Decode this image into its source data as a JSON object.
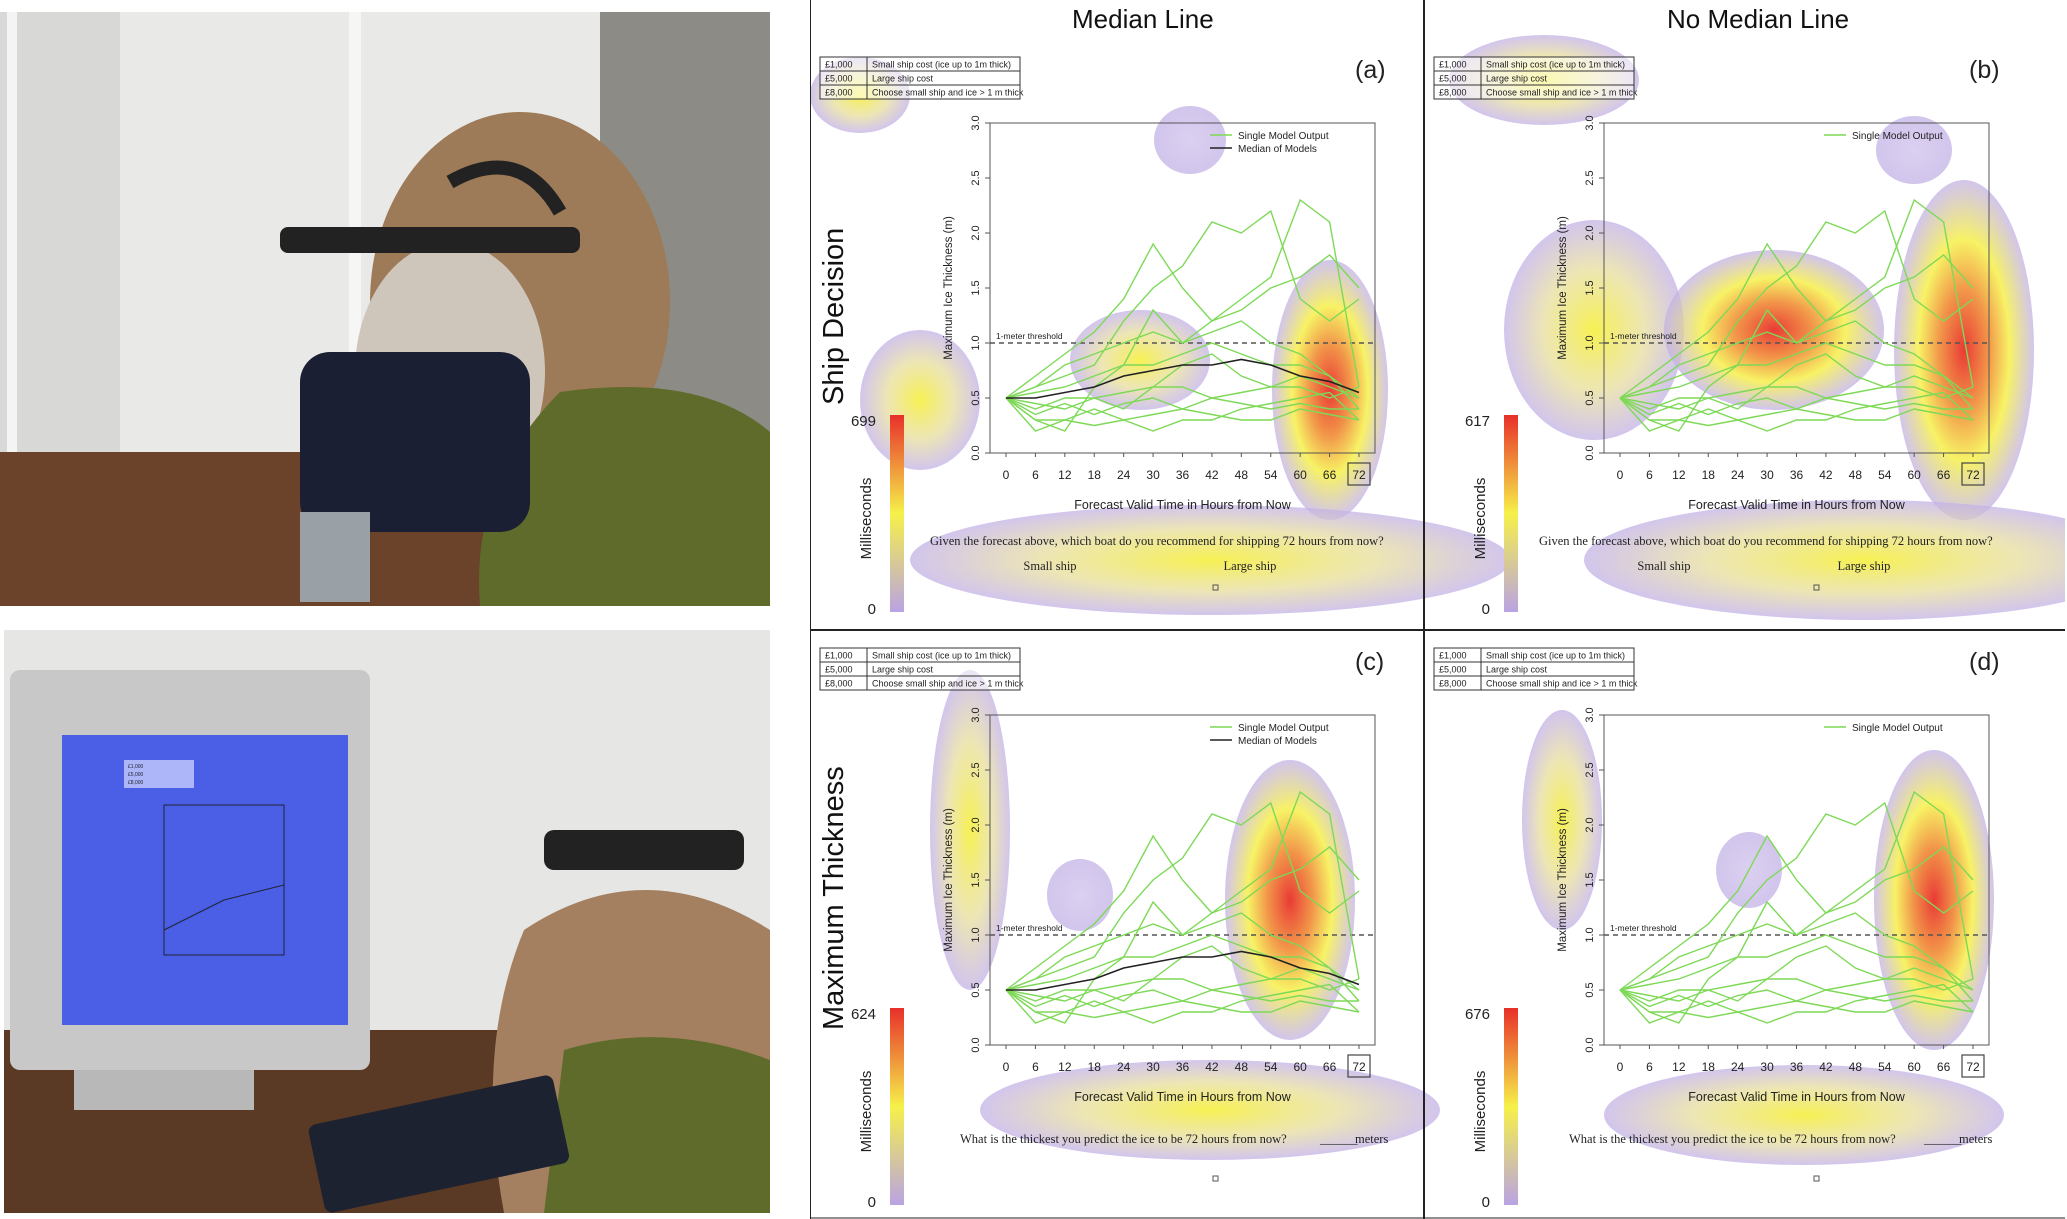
{
  "columns": [
    "Median Line",
    "No Median Line"
  ],
  "rows": [
    "Ship Decision",
    "Maximum Thickness"
  ],
  "panels": [
    {
      "label": "(a)",
      "row": 0,
      "col": 0,
      "scale_max": "699",
      "scale_min": "0",
      "median": true
    },
    {
      "label": "(b)",
      "row": 0,
      "col": 1,
      "scale_max": "617",
      "scale_min": "0",
      "median": false
    },
    {
      "label": "(c)",
      "row": 1,
      "col": 0,
      "scale_max": "624",
      "scale_min": "0",
      "median": true
    },
    {
      "label": "(d)",
      "row": 1,
      "col": 1,
      "scale_max": "676",
      "scale_min": "0",
      "median": false
    }
  ],
  "cost_table": [
    [
      "£1,000",
      "Small ship cost (ice up to 1m thick)"
    ],
    [
      "£5,000",
      "Large ship cost"
    ],
    [
      "£8,000",
      "Choose small ship and ice > 1 m thick"
    ]
  ],
  "scale_label": "Milliseconds",
  "threshold_label": "1-meter threshold",
  "legend": {
    "single": "Single Model Output",
    "median": "Median of Models"
  },
  "questions": {
    "ship": "Given the forecast above, which boat do you recommend for shipping 72 hours from now?",
    "small_ship": "Small ship",
    "large_ship": "Large ship",
    "thickness": "What is the thickest you predict the ice to be 72 hours from now?",
    "thickness_blank": "______",
    "thickness_unit": "meters"
  },
  "photo_screen_table": [
    "£1,000",
    "£5,000",
    "£8,000"
  ],
  "colors": {
    "single": "#7ed957",
    "median": "#222222",
    "heat_low": "#b9a3e3",
    "heat_mid": "#f6f04a",
    "heat_high": "#e8302a"
  },
  "chart_data": {
    "type": "line",
    "xlabel": "Forecast Valid Time in Hours from Now",
    "ylabel": "Maximum Ice Thickness (m)",
    "x": [
      0,
      6,
      12,
      18,
      24,
      30,
      36,
      42,
      48,
      54,
      60,
      66,
      72
    ],
    "yticks": [
      "0.0",
      "0.5",
      "1.0",
      "1.5",
      "2.0",
      "2.5",
      "3.0"
    ],
    "ylim": [
      0,
      3
    ],
    "threshold": 1.0,
    "series": [
      {
        "values": [
          0.5,
          0.7,
          0.9,
          1.1,
          1.4,
          1.9,
          1.5,
          1.2,
          1.4,
          1.6,
          2.3,
          2.1,
          0.6
        ]
      },
      {
        "values": [
          0.5,
          0.6,
          0.7,
          0.8,
          1.2,
          1.5,
          1.7,
          2.1,
          2.0,
          2.2,
          1.4,
          1.2,
          1.4
        ]
      },
      {
        "values": [
          0.5,
          0.3,
          0.2,
          0.6,
          0.8,
          1.3,
          1.0,
          1.2,
          1.3,
          1.5,
          1.6,
          1.8,
          1.5
        ]
      },
      {
        "values": [
          0.5,
          0.4,
          0.5,
          0.5,
          0.4,
          0.6,
          0.8,
          0.9,
          0.7,
          0.6,
          0.6,
          0.5,
          0.6
        ]
      },
      {
        "values": [
          0.5,
          0.6,
          0.8,
          0.9,
          1.0,
          1.1,
          1.0,
          1.1,
          1.2,
          1.0,
          0.9,
          0.7,
          0.4
        ]
      },
      {
        "values": [
          0.5,
          0.45,
          0.4,
          0.5,
          0.55,
          0.6,
          0.6,
          0.5,
          0.55,
          0.6,
          0.7,
          0.6,
          0.5
        ]
      },
      {
        "values": [
          0.5,
          0.3,
          0.3,
          0.4,
          0.3,
          0.35,
          0.4,
          0.35,
          0.3,
          0.3,
          0.4,
          0.35,
          0.3
        ]
      },
      {
        "values": [
          0.5,
          0.55,
          0.6,
          0.7,
          0.8,
          0.8,
          0.9,
          1.0,
          0.9,
          0.8,
          0.8,
          0.7,
          0.5
        ]
      },
      {
        "values": [
          0.5,
          0.2,
          0.3,
          0.25,
          0.3,
          0.2,
          0.3,
          0.3,
          0.4,
          0.45,
          0.5,
          0.55,
          0.3
        ]
      },
      {
        "values": [
          0.5,
          0.35,
          0.45,
          0.35,
          0.45,
          0.5,
          0.4,
          0.5,
          0.45,
          0.4,
          0.45,
          0.4,
          0.4
        ]
      }
    ],
    "median_values": [
      0.5,
      0.5,
      0.55,
      0.6,
      0.7,
      0.75,
      0.8,
      0.8,
      0.85,
      0.8,
      0.7,
      0.65,
      0.55
    ]
  }
}
